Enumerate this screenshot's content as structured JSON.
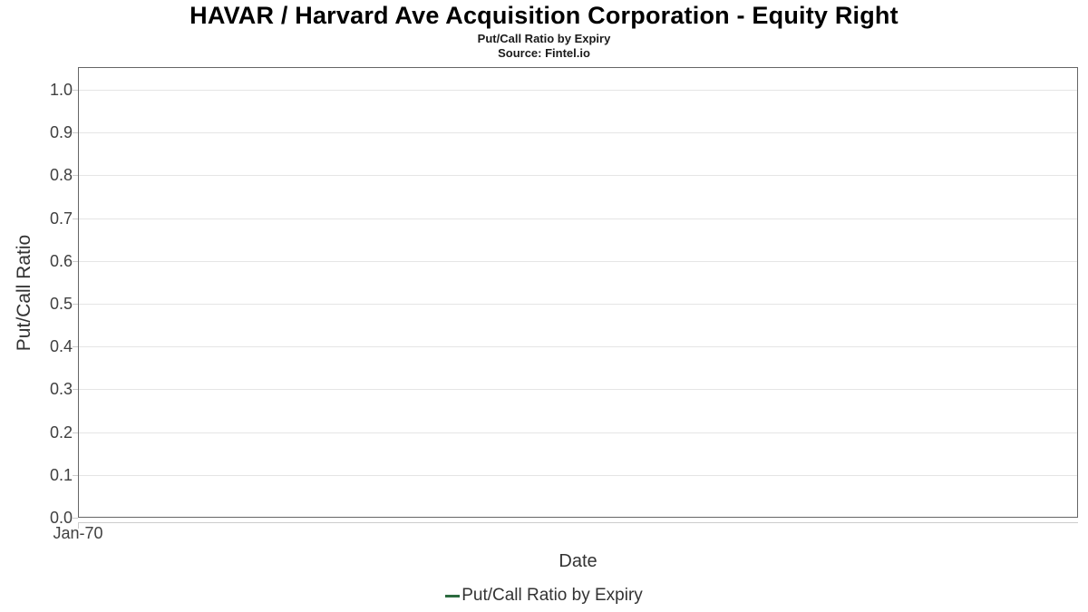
{
  "chart_data": {
    "type": "line",
    "title": "HAVAR / Harvard Ave Acquisition Corporation - Equity Right",
    "subtitle": "Put/Call Ratio by Expiry",
    "source": "Source: Fintel.io",
    "xlabel": "Date",
    "ylabel": "Put/Call Ratio",
    "x_ticks": [
      {
        "label": "Jan-70",
        "pos": 0
      }
    ],
    "y_ticks": [
      {
        "label": "0.0",
        "value": 0.0
      },
      {
        "label": "0.1",
        "value": 0.1
      },
      {
        "label": "0.2",
        "value": 0.2
      },
      {
        "label": "0.3",
        "value": 0.3
      },
      {
        "label": "0.4",
        "value": 0.4
      },
      {
        "label": "0.5",
        "value": 0.5
      },
      {
        "label": "0.6",
        "value": 0.6
      },
      {
        "label": "0.7",
        "value": 0.7
      },
      {
        "label": "0.8",
        "value": 0.8
      },
      {
        "label": "0.9",
        "value": 0.9
      },
      {
        "label": "1.0",
        "value": 1.0
      }
    ],
    "ylim": [
      0,
      1.05
    ],
    "grid": "horizontal-only",
    "legend": {
      "position": "bottom-center",
      "entries": [
        {
          "label": "Put/Call Ratio by Expiry",
          "color": "#2c6b3f"
        }
      ]
    },
    "series": [
      {
        "name": "Put/Call Ratio by Expiry",
        "color": "#2c6b3f",
        "x": [],
        "values": []
      }
    ]
  },
  "colors": {
    "background": "#ffffff",
    "plot_border": "#666666",
    "gridline": "#e5e5e5",
    "axis_line": "#cccccc",
    "tick_label": "#404040",
    "axis_title": "#333333",
    "title": "#000000",
    "legend_marker": "#2c6b3f"
  }
}
